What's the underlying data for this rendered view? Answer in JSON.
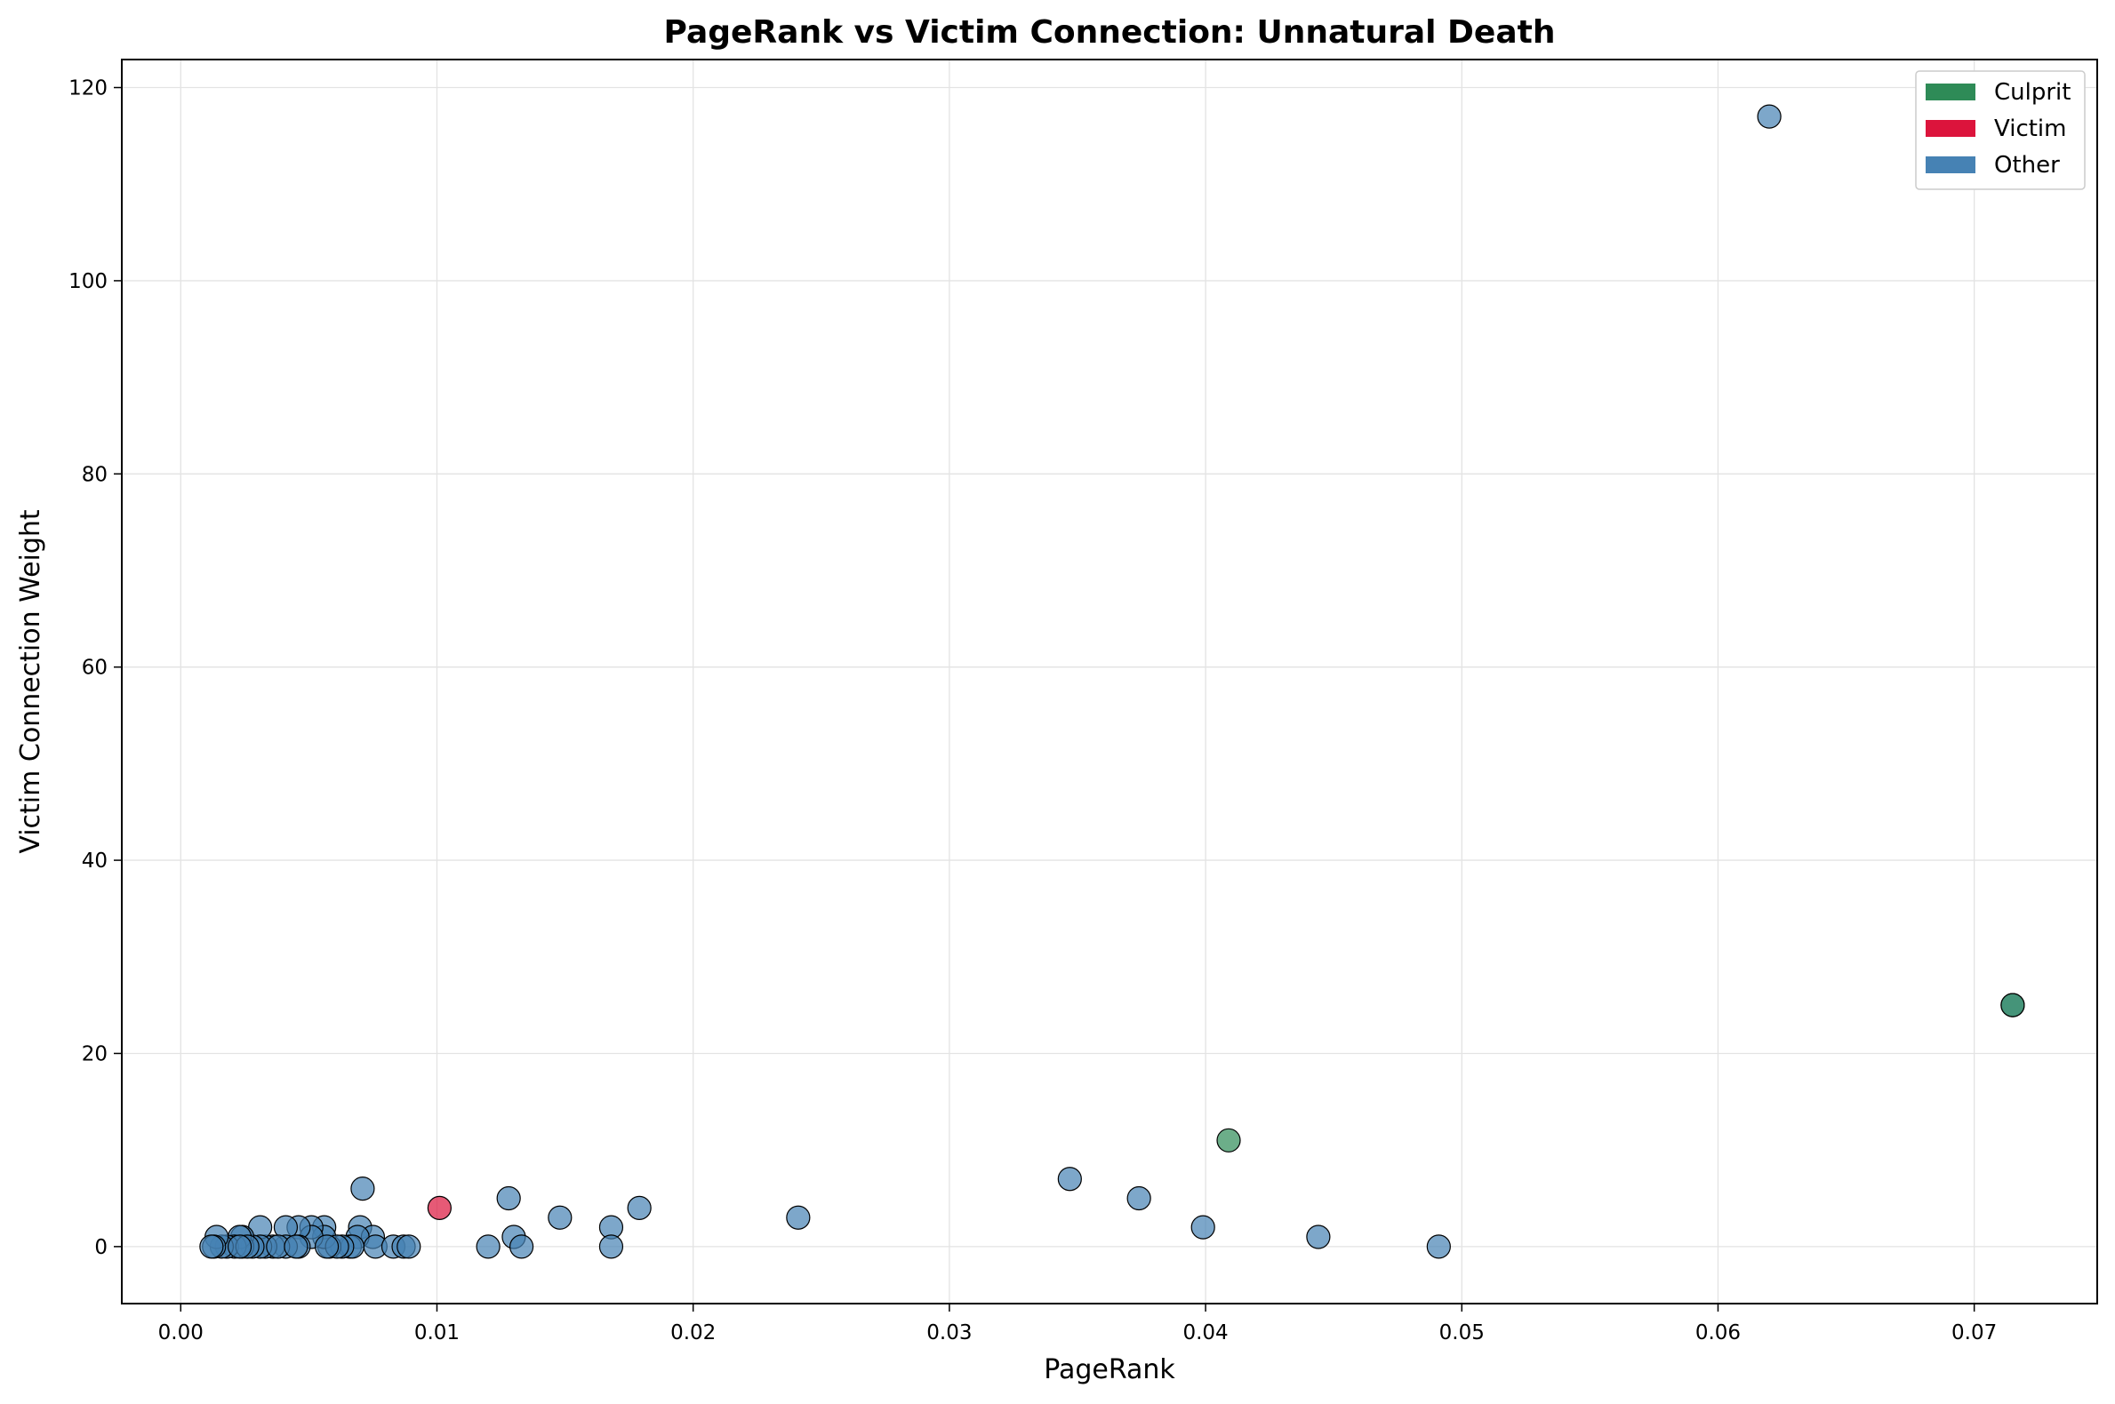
{
  "chart_data": {
    "type": "scatter",
    "title": "PageRank vs Victim Connection: Unnatural Death",
    "xlabel": "PageRank",
    "ylabel": "Victim Connection Weight",
    "xlim": [
      -0.0023,
      0.0748
    ],
    "ylim": [
      -5.9,
      122.9
    ],
    "xticks": [
      0.0,
      0.01,
      0.02,
      0.03,
      0.04,
      0.05,
      0.06,
      0.07
    ],
    "xtick_labels": [
      "0.00",
      "0.01",
      "0.02",
      "0.03",
      "0.04",
      "0.05",
      "0.06",
      "0.07"
    ],
    "yticks": [
      0,
      20,
      40,
      60,
      80,
      100,
      120
    ],
    "ytick_labels": [
      "0",
      "20",
      "40",
      "60",
      "80",
      "100",
      "120"
    ],
    "grid": true,
    "legend_position": "top-right",
    "colors": {
      "Culprit": "#2e8b57",
      "Victim": "#dc143c",
      "Other": "#4682b4"
    },
    "legend": [
      "Culprit",
      "Victim",
      "Other"
    ],
    "series": [
      {
        "name": "Other",
        "points": [
          [
            0.062,
            117
          ],
          [
            0.0715,
            25
          ],
          [
            0.0347,
            7
          ],
          [
            0.0374,
            5
          ],
          [
            0.0399,
            2
          ],
          [
            0.0444,
            1
          ],
          [
            0.0491,
            0
          ],
          [
            0.0241,
            3
          ],
          [
            0.0179,
            4
          ],
          [
            0.0168,
            2
          ],
          [
            0.0168,
            0
          ],
          [
            0.0148,
            3
          ],
          [
            0.0128,
            5
          ],
          [
            0.013,
            1
          ],
          [
            0.0133,
            0
          ],
          [
            0.012,
            0
          ],
          [
            0.0071,
            6
          ],
          [
            0.007,
            2
          ],
          [
            0.0075,
            1
          ],
          [
            0.0069,
            1
          ],
          [
            0.0076,
            0
          ],
          [
            0.0083,
            0
          ],
          [
            0.0087,
            0
          ],
          [
            0.0089,
            0
          ],
          [
            0.0066,
            0
          ],
          [
            0.0067,
            0
          ],
          [
            0.0063,
            0
          ],
          [
            0.0058,
            0
          ],
          [
            0.0056,
            2
          ],
          [
            0.0056,
            1
          ],
          [
            0.0051,
            2
          ],
          [
            0.0051,
            1
          ],
          [
            0.0046,
            2
          ],
          [
            0.0046,
            0
          ],
          [
            0.0041,
            2
          ],
          [
            0.0041,
            0
          ],
          [
            0.0036,
            0
          ],
          [
            0.0033,
            0
          ],
          [
            0.0031,
            2
          ],
          [
            0.0031,
            0
          ],
          [
            0.0028,
            0
          ],
          [
            0.0024,
            1
          ],
          [
            0.0024,
            0
          ],
          [
            0.0023,
            1
          ],
          [
            0.0021,
            0
          ],
          [
            0.0018,
            0
          ],
          [
            0.0016,
            0
          ],
          [
            0.0014,
            1
          ],
          [
            0.0013,
            0
          ],
          [
            0.0012,
            0
          ],
          [
            0.0026,
            0
          ],
          [
            0.0038,
            0
          ],
          [
            0.0061,
            0
          ],
          [
            0.0023,
            0
          ],
          [
            0.0045,
            0
          ],
          [
            0.0057,
            0
          ]
        ]
      },
      {
        "name": "Victim",
        "points": [
          [
            0.0101,
            4
          ]
        ]
      },
      {
        "name": "Culprit",
        "points": [
          [
            0.0409,
            11
          ],
          [
            0.0715,
            25
          ]
        ]
      }
    ]
  }
}
